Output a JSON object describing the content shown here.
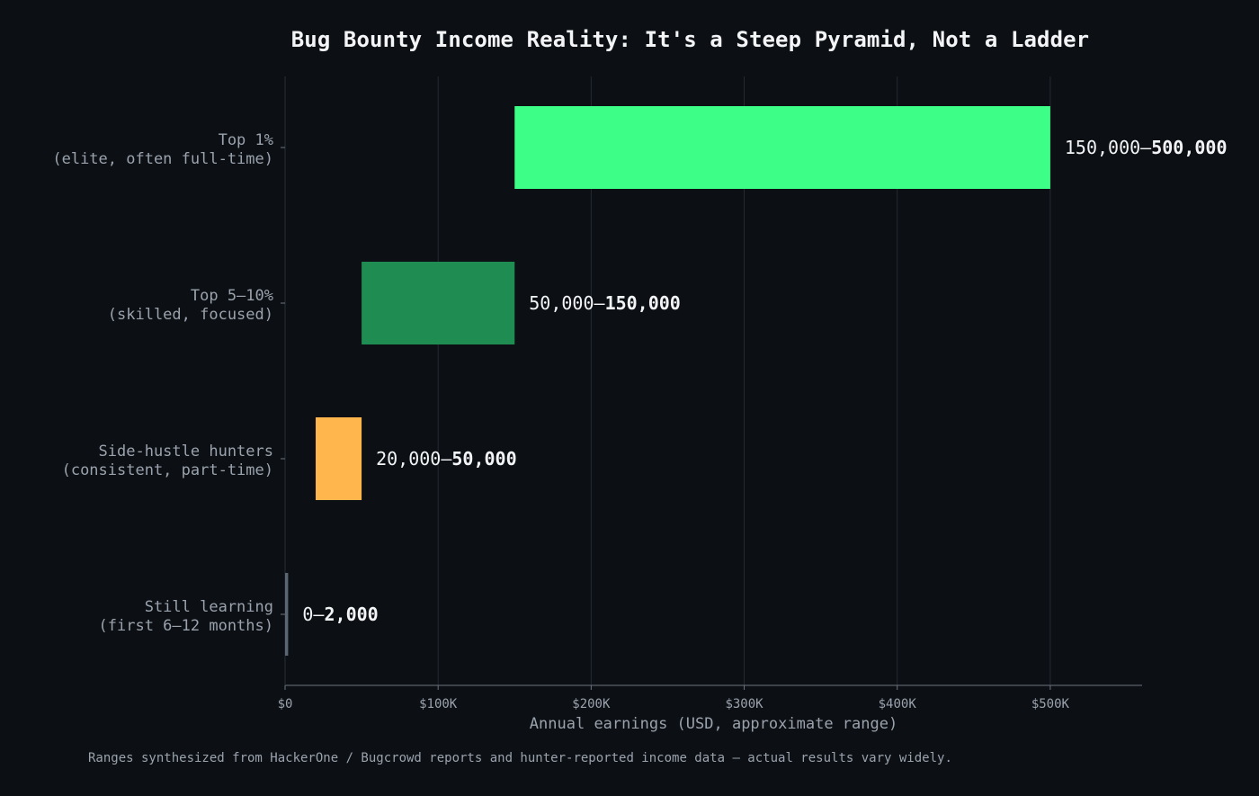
{
  "chart_data": {
    "type": "bar",
    "orientation": "horizontal",
    "subtype": "floating-range",
    "title": "Bug Bounty Income Reality: It's a Steep Pyramid, Not a Ladder",
    "xlabel": "Annual earnings (USD, approximate range)",
    "ylabel": "",
    "xlim": [
      0,
      560000
    ],
    "x_ticks": [
      0,
      100000,
      200000,
      300000,
      400000,
      500000
    ],
    "x_tick_labels": [
      "$0",
      "$100K",
      "$200K",
      "$300K",
      "$400K",
      "$500K"
    ],
    "grid": "vertical",
    "categories": [
      {
        "line1": "Top 1%",
        "line2": "(elite, often full-time)"
      },
      {
        "line1": "Top 5–10%",
        "line2": "(skilled, focused)"
      },
      {
        "line1": "Side-hustle hunters",
        "line2": "(consistent, part-time)"
      },
      {
        "line1": "Still learning",
        "line2": "(first 6–12 months)"
      }
    ],
    "ranges": [
      {
        "low": 150000,
        "high": 500000,
        "color": "#3dff87",
        "label_low": "150,000–",
        "label_high": "500,000"
      },
      {
        "low": 50000,
        "high": 150000,
        "color": "#1f8c52",
        "label_low": "50,000–",
        "label_high": "150,000"
      },
      {
        "low": 20000,
        "high": 50000,
        "color": "#ffb74d",
        "label_low": "20,000–",
        "label_high": "50,000"
      },
      {
        "low": 0,
        "high": 2000,
        "color": "#5a6472",
        "label_low": "0–",
        "label_high": "2,000"
      }
    ]
  },
  "footnote": "Ranges synthesized from HackerOne / Bugcrowd reports and hunter-reported income data — actual results vary widely."
}
